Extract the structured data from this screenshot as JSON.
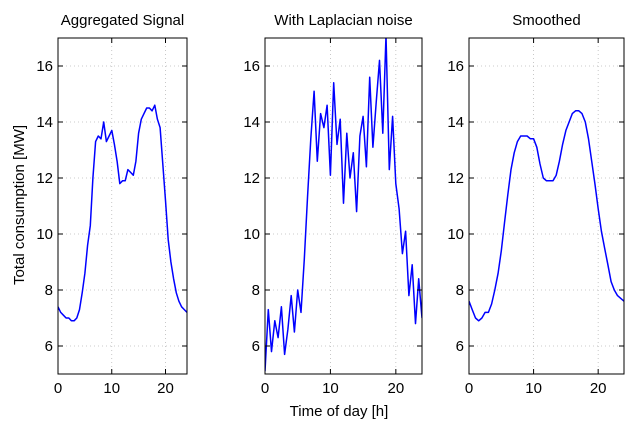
{
  "figure": {
    "ylabel": "Total consumption [MW]",
    "xlabel": "Time of day [h]"
  },
  "chart_data": [
    {
      "type": "line",
      "title": "Aggregated Signal",
      "xlim": [
        0,
        24
      ],
      "ylim": [
        5,
        17
      ],
      "xticks": [
        0,
        10,
        20
      ],
      "yticks": [
        6,
        8,
        10,
        12,
        14,
        16
      ],
      "grid": true,
      "color": "#0000ff",
      "x": [
        0,
        0.5,
        1,
        1.5,
        2,
        2.5,
        3,
        3.5,
        4,
        4.5,
        5,
        5.5,
        6,
        6.5,
        7,
        7.5,
        8,
        8.5,
        9,
        9.5,
        10,
        10.5,
        11,
        11.5,
        12,
        12.5,
        13,
        13.5,
        14,
        14.5,
        15,
        15.5,
        16,
        16.5,
        17,
        17.5,
        18,
        18.5,
        19,
        19.5,
        20,
        20.5,
        21,
        21.5,
        22,
        22.5,
        23,
        23.5,
        24
      ],
      "y": [
        7.4,
        7.2,
        7.1,
        7.0,
        7.0,
        6.9,
        6.9,
        7.0,
        7.3,
        7.9,
        8.6,
        9.6,
        10.3,
        12.0,
        13.3,
        13.5,
        13.4,
        14.0,
        13.3,
        13.5,
        13.7,
        13.2,
        12.6,
        11.8,
        11.9,
        11.9,
        12.3,
        12.2,
        12.1,
        12.6,
        13.6,
        14.1,
        14.3,
        14.5,
        14.5,
        14.4,
        14.6,
        14.1,
        13.8,
        12.5,
        11.2,
        9.8,
        9.0,
        8.4,
        7.9,
        7.6,
        7.4,
        7.3,
        7.2
      ]
    },
    {
      "type": "line",
      "title": "With Laplacian noise",
      "xlim": [
        0,
        24
      ],
      "ylim": [
        5,
        17
      ],
      "xticks": [
        0,
        10,
        20
      ],
      "yticks": [
        6,
        8,
        10,
        12,
        14,
        16
      ],
      "grid": true,
      "color": "#0000ff",
      "x": [
        0,
        0.5,
        1,
        1.5,
        2,
        2.5,
        3,
        3.5,
        4,
        4.5,
        5,
        5.5,
        6,
        6.5,
        7,
        7.5,
        8,
        8.5,
        9,
        9.5,
        10,
        10.5,
        11,
        11.5,
        12,
        12.5,
        13,
        13.5,
        14,
        14.5,
        15,
        15.5,
        16,
        16.5,
        17,
        17.5,
        18,
        18.5,
        19,
        19.5,
        20,
        20.5,
        21,
        21.5,
        22,
        22.5,
        23,
        23.5,
        24
      ],
      "y": [
        5.1,
        7.3,
        5.8,
        6.9,
        6.3,
        7.4,
        5.7,
        6.6,
        7.8,
        6.5,
        8.0,
        7.2,
        9.1,
        11.3,
        13.4,
        15.1,
        12.6,
        14.3,
        13.8,
        14.6,
        12.1,
        15.4,
        13.2,
        14.1,
        11.1,
        13.6,
        12.0,
        12.9,
        10.8,
        13.5,
        14.2,
        12.4,
        15.6,
        13.1,
        14.7,
        16.2,
        13.6,
        17.1,
        12.3,
        14.2,
        11.8,
        10.9,
        9.3,
        10.1,
        7.8,
        8.9,
        6.8,
        8.4,
        7.0
      ]
    },
    {
      "type": "line",
      "title": "Smoothed",
      "xlim": [
        0,
        24
      ],
      "ylim": [
        5,
        17
      ],
      "xticks": [
        0,
        10,
        20
      ],
      "yticks": [
        6,
        8,
        10,
        12,
        14,
        16
      ],
      "grid": true,
      "color": "#0000ff",
      "x": [
        0,
        0.5,
        1,
        1.5,
        2,
        2.5,
        3,
        3.5,
        4,
        4.5,
        5,
        5.5,
        6,
        6.5,
        7,
        7.5,
        8,
        8.5,
        9,
        9.5,
        10,
        10.5,
        11,
        11.5,
        12,
        12.5,
        13,
        13.5,
        14,
        14.5,
        15,
        15.5,
        16,
        16.5,
        17,
        17.5,
        18,
        18.5,
        19,
        19.5,
        20,
        20.5,
        21,
        21.5,
        22,
        22.5,
        23,
        23.5,
        24
      ],
      "y": [
        7.6,
        7.3,
        7.0,
        6.9,
        7.0,
        7.2,
        7.2,
        7.5,
        8.0,
        8.6,
        9.4,
        10.4,
        11.4,
        12.3,
        12.9,
        13.3,
        13.5,
        13.5,
        13.5,
        13.4,
        13.4,
        13.1,
        12.5,
        12.0,
        11.9,
        11.9,
        11.9,
        12.1,
        12.6,
        13.2,
        13.7,
        14.0,
        14.3,
        14.4,
        14.4,
        14.3,
        14.0,
        13.4,
        12.6,
        11.8,
        10.9,
        10.1,
        9.5,
        8.9,
        8.3,
        8.0,
        7.8,
        7.7,
        7.6
      ]
    }
  ]
}
